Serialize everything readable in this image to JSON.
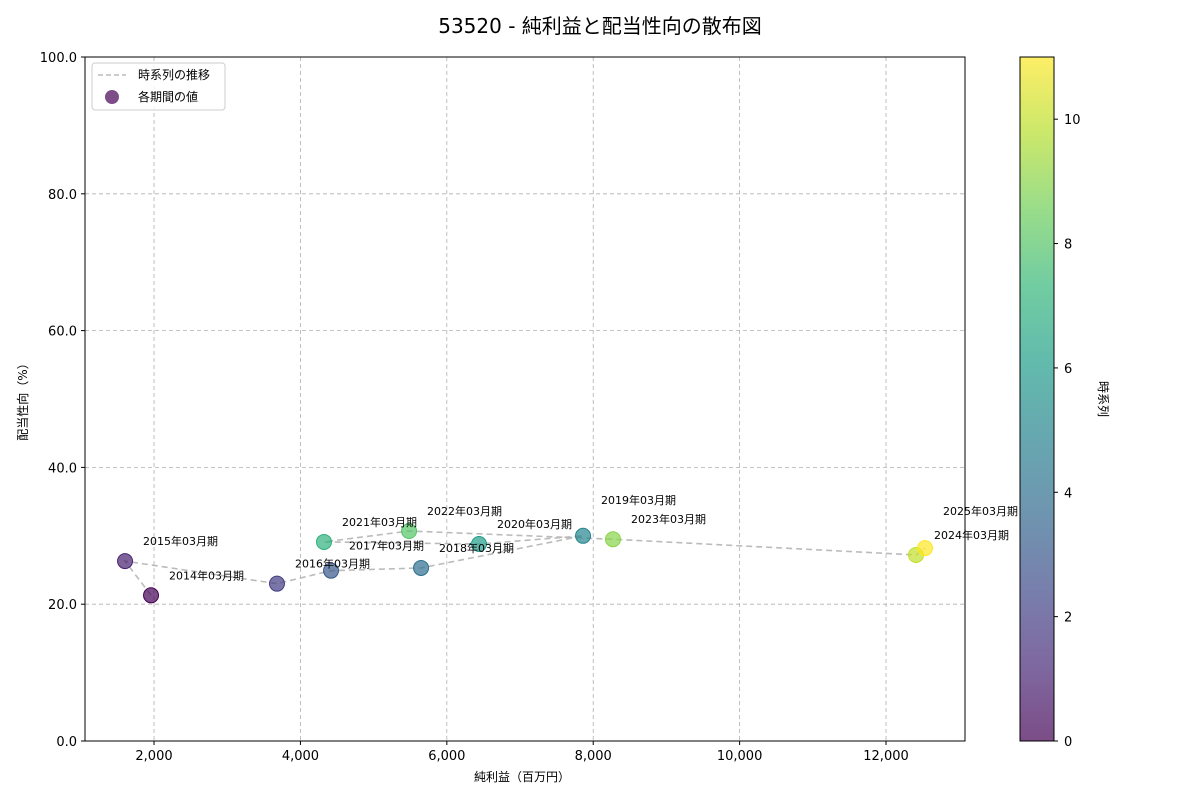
{
  "chart_data": {
    "type": "scatter",
    "title": "53520 - 純利益と配当性向の散布図",
    "xlabel": "純利益（百万円）",
    "ylabel": "配当性向（%）",
    "xlim": [
      1057,
      13079
    ],
    "ylim": [
      0,
      100
    ],
    "grid": true,
    "xticks": [
      2000,
      4000,
      6000,
      8000,
      10000,
      12000
    ],
    "xtick_labels": [
      "2,000",
      "4,000",
      "6,000",
      "8,000",
      "10,000",
      "12,000"
    ],
    "yticks": [
      0,
      20,
      40,
      60,
      80,
      100
    ],
    "ytick_labels": [
      "0.0",
      "20.0",
      "40.0",
      "60.0",
      "80.0",
      "100.0"
    ],
    "legend": {
      "placement": "top-left",
      "entries": [
        "時系列の推移",
        "各期間の値"
      ]
    },
    "colorbar": {
      "label": "時系列",
      "range": [
        0,
        11
      ],
      "ticks": [
        0,
        2,
        4,
        6,
        8,
        10
      ],
      "tick_labels": [
        "0",
        "2",
        "4",
        "6",
        "8",
        "10"
      ],
      "colormap": "viridis"
    },
    "points": [
      {
        "label": "2014年03月期",
        "x": 1959,
        "y": 21.3,
        "t": 0
      },
      {
        "label": "2015年03月期",
        "x": 1604,
        "y": 26.3,
        "t": 1
      },
      {
        "label": "2016年03月期",
        "x": 3680,
        "y": 23.0,
        "t": 2
      },
      {
        "label": "2017年03月期",
        "x": 4418,
        "y": 24.9,
        "t": 3
      },
      {
        "label": "2018年03月期",
        "x": 5648,
        "y": 25.3,
        "t": 4
      },
      {
        "label": "2019年03月期",
        "x": 7861,
        "y": 30.0,
        "t": 5
      },
      {
        "label": "2020年03月期",
        "x": 6440,
        "y": 28.8,
        "t": 6
      },
      {
        "label": "2021年03月期",
        "x": 4322,
        "y": 29.1,
        "t": 7
      },
      {
        "label": "2022年03月期",
        "x": 5484,
        "y": 30.7,
        "t": 8
      },
      {
        "label": "2023年03月期",
        "x": 8270,
        "y": 29.5,
        "t": 9
      },
      {
        "label": "2024年03月期",
        "x": 12410,
        "y": 27.2,
        "t": 10
      },
      {
        "label": "2025年03月期",
        "x": 12533,
        "y": 28.2,
        "t": 11
      }
    ]
  }
}
